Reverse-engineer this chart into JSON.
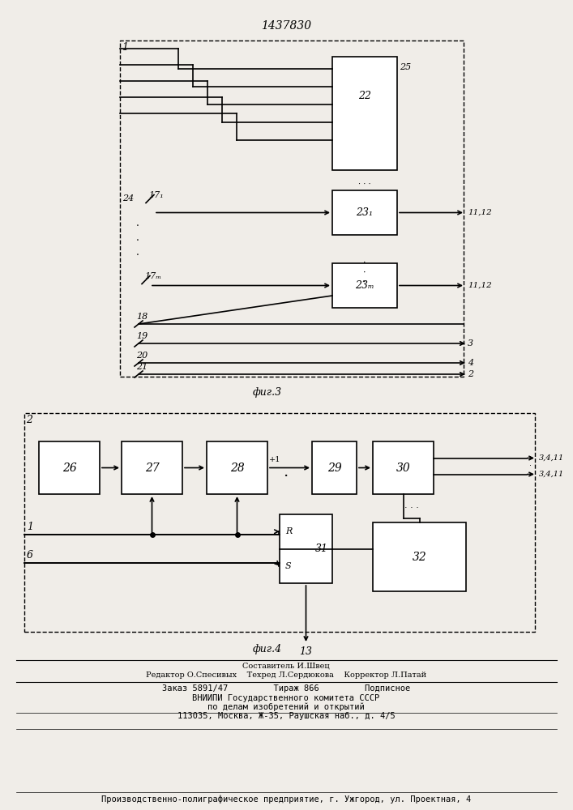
{
  "title": "1437830",
  "fig3_label": "фиг.3",
  "fig4_label": "фиг.4",
  "bg_color": "#f0ede8",
  "line_color": "#000000",
  "footer_lines": [
    "Составитель И.Швец",
    "Редактор О.Спесивых    Техред Л.Сердюкова    Корректор Л.Патай",
    "Заказ 5891/47         Тираж 866         Подписное",
    "ВНИИПИ Государственного комитета СССР",
    "по делам изобретений и открытий",
    "113035, Москва, Ж-35, Раушская наб., д. 4/5",
    "Производственно-полиграфическое предприятие, г. Ужгород, ул. Проектная, 4"
  ]
}
